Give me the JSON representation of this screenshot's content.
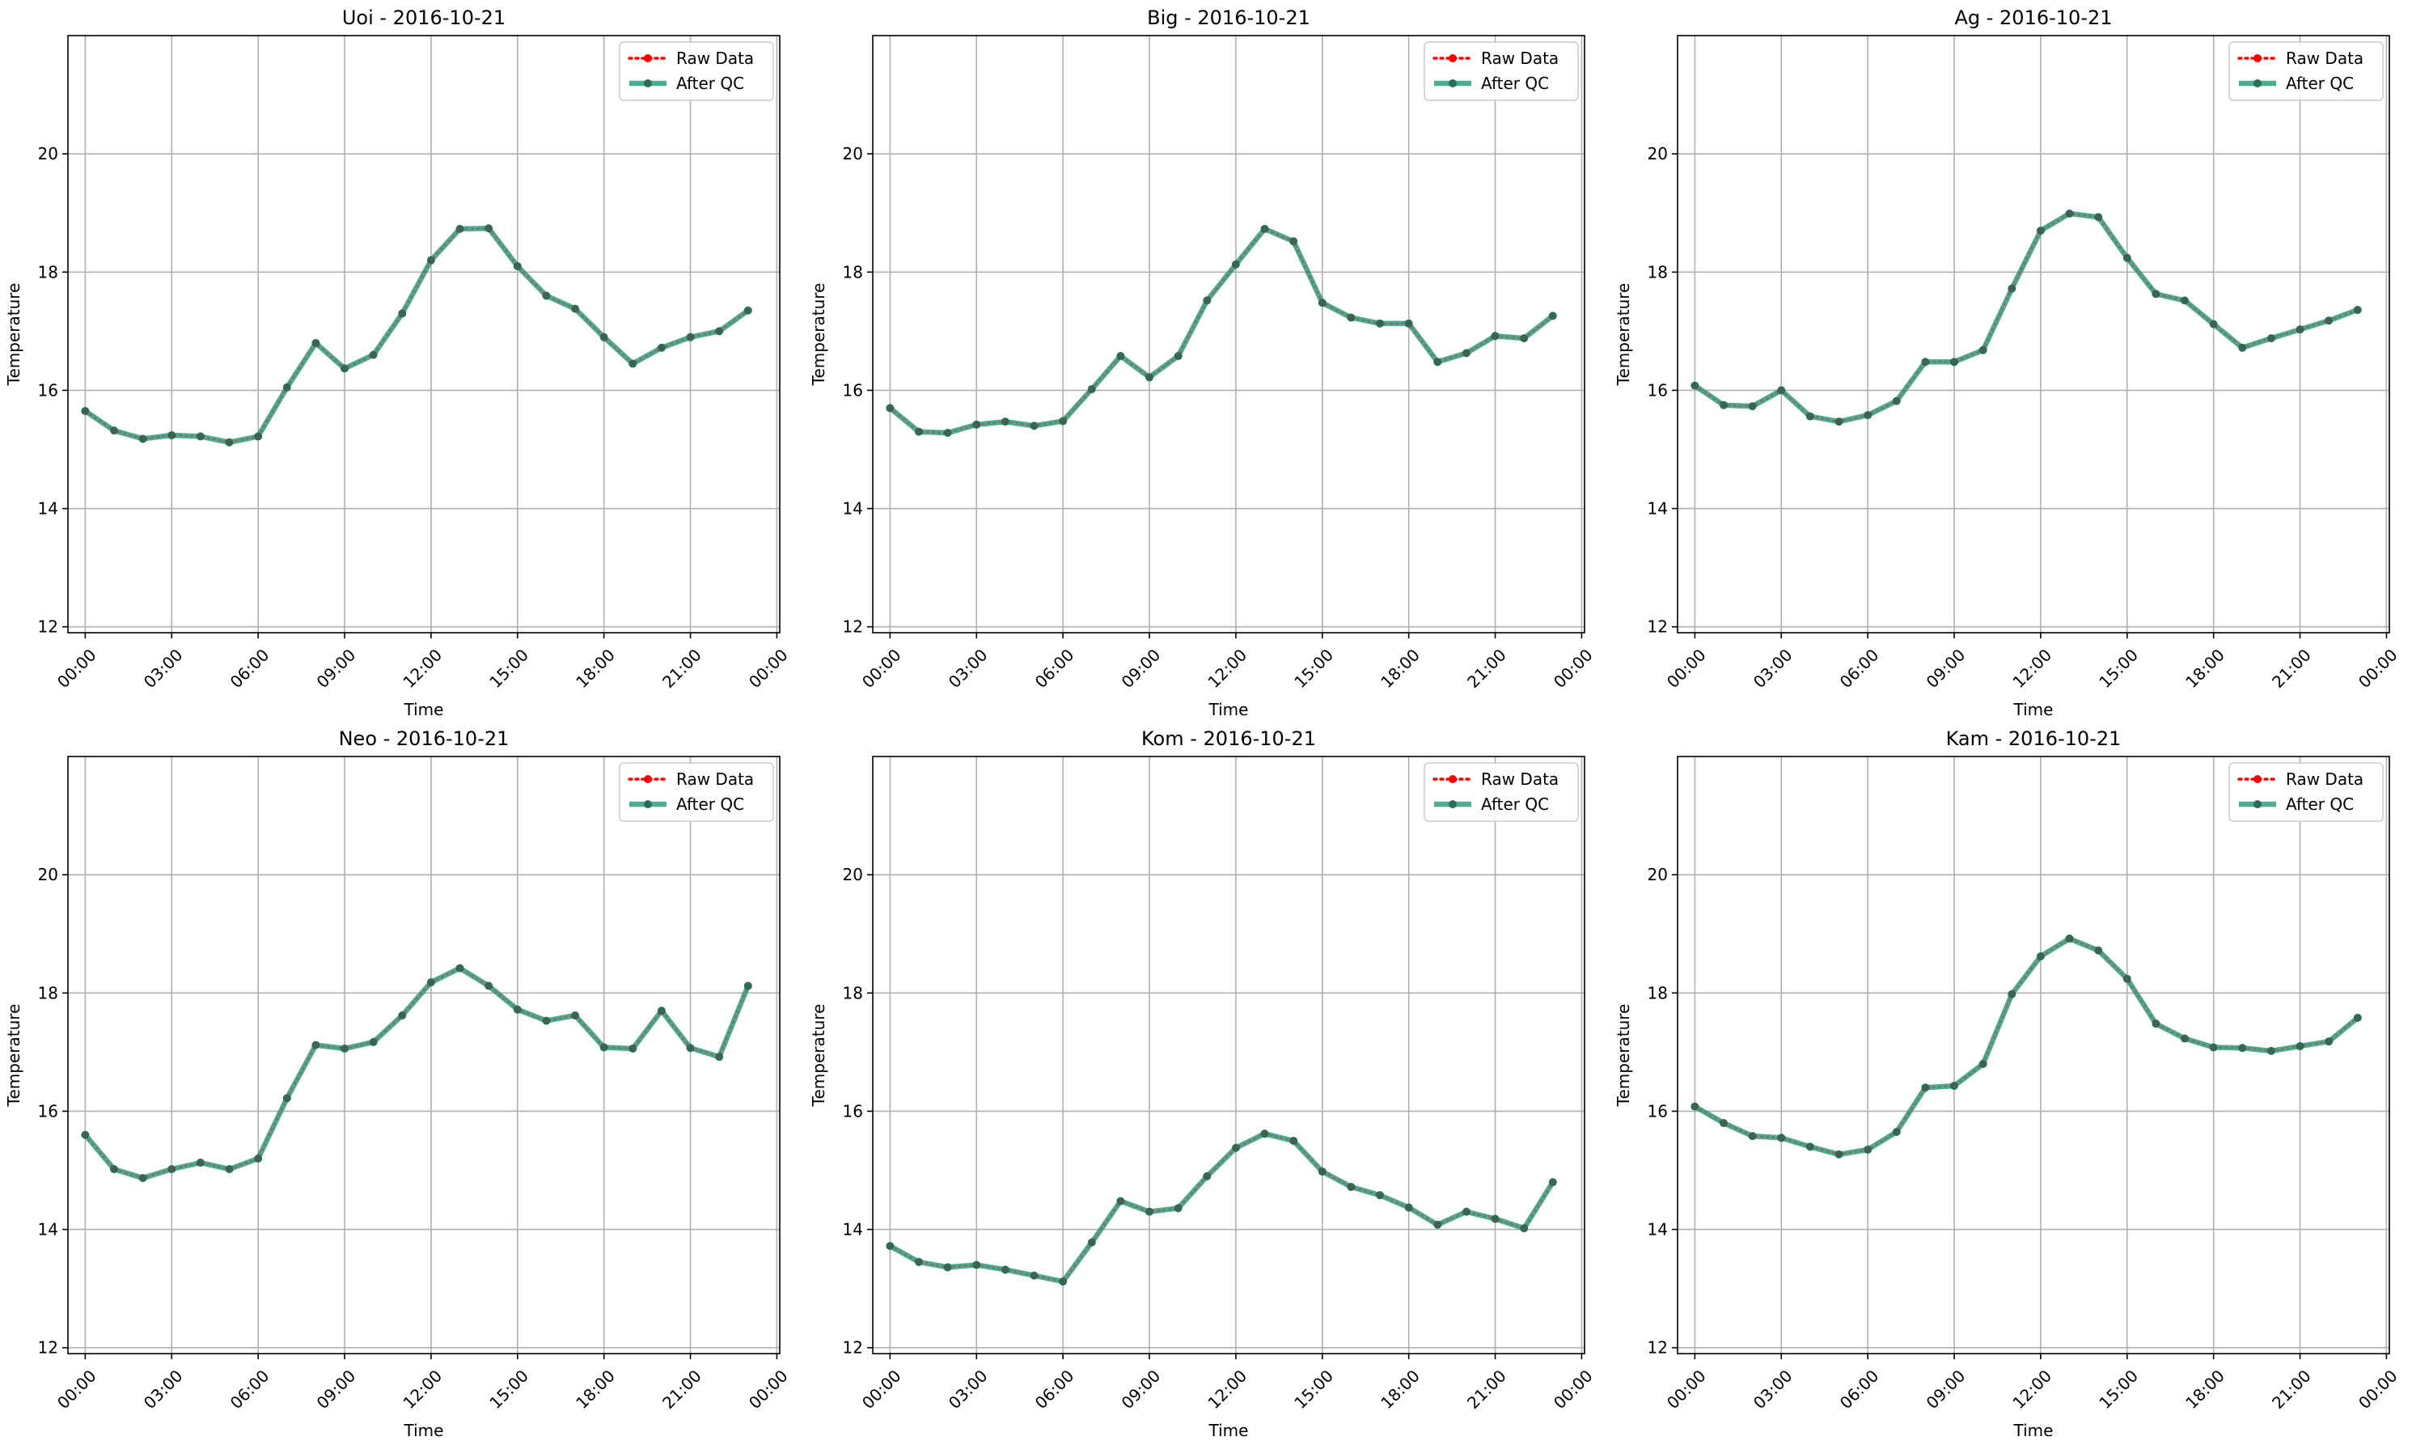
{
  "figure": {
    "ylabel": "Temperature",
    "xlabel": "Time",
    "legend": [
      "Raw Data",
      "After QC"
    ]
  },
  "colors": {
    "raw": "#ff0000",
    "qc": "#2a9d7e",
    "qc_marker": "#2a6e5a",
    "grid": "#b0b0b0",
    "axis": "#000000"
  },
  "chart_data": [
    {
      "type": "line",
      "title": "Uoi - 2016-10-21",
      "xlabel": "Time",
      "ylabel": "Temperature",
      "x_hours": [
        0,
        1,
        2,
        3,
        4,
        5,
        6,
        7,
        8,
        9,
        10,
        11,
        12,
        13,
        14,
        15,
        16,
        17,
        18,
        19,
        20,
        21,
        22,
        23
      ],
      "xticks": [
        "00:00",
        "03:00",
        "06:00",
        "09:00",
        "12:00",
        "15:00",
        "18:00",
        "21:00",
        "00:00"
      ],
      "xlim_hours": [
        -0.6,
        24.1
      ],
      "ylim": [
        11.9,
        22.0
      ],
      "yticks": [
        12,
        14,
        16,
        18,
        20
      ],
      "grid": true,
      "legend_position": "upper right",
      "series": [
        {
          "name": "Raw Data",
          "values": [
            15.65,
            15.32,
            15.18,
            15.24,
            15.22,
            15.12,
            15.22,
            16.05,
            16.8,
            16.37,
            16.6,
            17.3,
            18.2,
            18.73,
            18.74,
            18.1,
            17.6,
            17.38,
            16.9,
            16.45,
            16.72,
            16.9,
            17.0,
            17.35
          ]
        },
        {
          "name": "After QC",
          "values": [
            15.65,
            15.32,
            15.18,
            15.24,
            15.22,
            15.12,
            15.22,
            16.05,
            16.8,
            16.37,
            16.6,
            17.3,
            18.2,
            18.73,
            18.74,
            18.1,
            17.6,
            17.38,
            16.9,
            16.45,
            16.72,
            16.9,
            17.0,
            17.35
          ]
        }
      ]
    },
    {
      "type": "line",
      "title": "Big - 2016-10-21",
      "xlabel": "Time",
      "ylabel": "Temperature",
      "x_hours": [
        0,
        1,
        2,
        3,
        4,
        5,
        6,
        7,
        8,
        9,
        10,
        11,
        12,
        13,
        14,
        15,
        16,
        17,
        18,
        19,
        20,
        21,
        22,
        23
      ],
      "xticks": [
        "00:00",
        "03:00",
        "06:00",
        "09:00",
        "12:00",
        "15:00",
        "18:00",
        "21:00",
        "00:00"
      ],
      "xlim_hours": [
        -0.6,
        24.1
      ],
      "ylim": [
        11.9,
        22.0
      ],
      "yticks": [
        12,
        14,
        16,
        18,
        20
      ],
      "grid": true,
      "legend_position": "upper right",
      "series": [
        {
          "name": "Raw Data",
          "values": [
            15.7,
            15.3,
            15.28,
            15.42,
            15.47,
            15.4,
            15.48,
            16.02,
            16.58,
            16.22,
            16.58,
            17.52,
            18.13,
            18.73,
            18.52,
            17.48,
            17.23,
            17.13,
            17.13,
            16.48,
            16.63,
            16.92,
            16.88,
            17.26
          ]
        },
        {
          "name": "After QC",
          "values": [
            15.7,
            15.3,
            15.28,
            15.42,
            15.47,
            15.4,
            15.48,
            16.02,
            16.58,
            16.22,
            16.58,
            17.52,
            18.13,
            18.73,
            18.52,
            17.48,
            17.23,
            17.13,
            17.13,
            16.48,
            16.63,
            16.92,
            16.88,
            17.26
          ]
        }
      ]
    },
    {
      "type": "line",
      "title": "Ag - 2016-10-21",
      "xlabel": "Time",
      "ylabel": "Temperature",
      "x_hours": [
        0,
        1,
        2,
        3,
        4,
        5,
        6,
        7,
        8,
        9,
        10,
        11,
        12,
        13,
        14,
        15,
        16,
        17,
        18,
        19,
        20,
        21,
        22,
        23
      ],
      "xticks": [
        "00:00",
        "03:00",
        "06:00",
        "09:00",
        "12:00",
        "15:00",
        "18:00",
        "21:00",
        "00:00"
      ],
      "xlim_hours": [
        -0.6,
        24.1
      ],
      "ylim": [
        11.9,
        22.0
      ],
      "yticks": [
        12,
        14,
        16,
        18,
        20
      ],
      "grid": true,
      "legend_position": "upper right",
      "series": [
        {
          "name": "Raw Data",
          "values": [
            16.08,
            15.75,
            15.73,
            16.0,
            15.56,
            15.47,
            15.58,
            15.82,
            16.48,
            16.48,
            16.68,
            17.72,
            18.7,
            18.99,
            18.93,
            18.24,
            17.63,
            17.52,
            17.12,
            16.72,
            16.88,
            17.03,
            17.18,
            17.36
          ]
        },
        {
          "name": "After QC",
          "values": [
            16.08,
            15.75,
            15.73,
            16.0,
            15.56,
            15.47,
            15.58,
            15.82,
            16.48,
            16.48,
            16.68,
            17.72,
            18.7,
            18.99,
            18.93,
            18.24,
            17.63,
            17.52,
            17.12,
            16.72,
            16.88,
            17.03,
            17.18,
            17.36
          ]
        }
      ]
    },
    {
      "type": "line",
      "title": "Neo - 2016-10-21",
      "xlabel": "Time",
      "ylabel": "Temperature",
      "x_hours": [
        0,
        1,
        2,
        3,
        4,
        5,
        6,
        7,
        8,
        9,
        10,
        11,
        12,
        13,
        14,
        15,
        16,
        17,
        18,
        19,
        20,
        21,
        22,
        23
      ],
      "xticks": [
        "00:00",
        "03:00",
        "06:00",
        "09:00",
        "12:00",
        "15:00",
        "18:00",
        "21:00",
        "00:00"
      ],
      "xlim_hours": [
        -0.6,
        24.1
      ],
      "ylim": [
        11.9,
        22.0
      ],
      "yticks": [
        12,
        14,
        16,
        18,
        20
      ],
      "grid": true,
      "legend_position": "upper right",
      "series": [
        {
          "name": "Raw Data",
          "values": [
            15.6,
            15.02,
            14.87,
            15.02,
            15.13,
            15.02,
            15.2,
            16.22,
            17.12,
            17.06,
            17.17,
            17.62,
            18.18,
            18.42,
            18.12,
            17.72,
            17.53,
            17.62,
            17.08,
            17.06,
            17.7,
            17.07,
            16.92,
            18.12
          ]
        },
        {
          "name": "After QC",
          "values": [
            15.6,
            15.02,
            14.87,
            15.02,
            15.13,
            15.02,
            15.2,
            16.22,
            17.12,
            17.06,
            17.17,
            17.62,
            18.18,
            18.42,
            18.12,
            17.72,
            17.53,
            17.62,
            17.08,
            17.06,
            17.7,
            17.07,
            16.92,
            18.12
          ]
        }
      ]
    },
    {
      "type": "line",
      "title": "Kom - 2016-10-21",
      "xlabel": "Time",
      "ylabel": "Temperature",
      "x_hours": [
        0,
        1,
        2,
        3,
        4,
        5,
        6,
        7,
        8,
        9,
        10,
        11,
        12,
        13,
        14,
        15,
        16,
        17,
        18,
        19,
        20,
        21,
        22,
        23
      ],
      "xticks": [
        "00:00",
        "03:00",
        "06:00",
        "09:00",
        "12:00",
        "15:00",
        "18:00",
        "21:00",
        "00:00"
      ],
      "xlim_hours": [
        -0.6,
        24.1
      ],
      "ylim": [
        11.9,
        22.0
      ],
      "yticks": [
        12,
        14,
        16,
        18,
        20
      ],
      "grid": true,
      "legend_position": "upper right",
      "series": [
        {
          "name": "Raw Data",
          "values": [
            13.72,
            13.45,
            13.36,
            13.4,
            13.32,
            13.22,
            13.12,
            13.78,
            14.48,
            14.3,
            14.36,
            14.9,
            15.38,
            15.62,
            15.5,
            14.98,
            14.72,
            14.58,
            14.37,
            14.08,
            14.3,
            14.18,
            14.02,
            14.8
          ]
        },
        {
          "name": "After QC",
          "values": [
            13.72,
            13.45,
            13.36,
            13.4,
            13.32,
            13.22,
            13.12,
            13.78,
            14.48,
            14.3,
            14.36,
            14.9,
            15.38,
            15.62,
            15.5,
            14.98,
            14.72,
            14.58,
            14.37,
            14.08,
            14.3,
            14.18,
            14.02,
            14.8
          ]
        }
      ]
    },
    {
      "type": "line",
      "title": "Kam - 2016-10-21",
      "xlabel": "Time",
      "ylabel": "Temperature",
      "x_hours": [
        0,
        1,
        2,
        3,
        4,
        5,
        6,
        7,
        8,
        9,
        10,
        11,
        12,
        13,
        14,
        15,
        16,
        17,
        18,
        19,
        20,
        21,
        22,
        23
      ],
      "xticks": [
        "00:00",
        "03:00",
        "06:00",
        "09:00",
        "12:00",
        "15:00",
        "18:00",
        "21:00",
        "00:00"
      ],
      "xlim_hours": [
        -0.6,
        24.1
      ],
      "ylim": [
        11.9,
        22.0
      ],
      "yticks": [
        12,
        14,
        16,
        18,
        20
      ],
      "grid": true,
      "legend_position": "upper right",
      "series": [
        {
          "name": "Raw Data",
          "values": [
            16.08,
            15.8,
            15.58,
            15.55,
            15.4,
            15.27,
            15.35,
            15.65,
            16.4,
            16.43,
            16.8,
            17.98,
            18.62,
            18.92,
            18.72,
            18.24,
            17.48,
            17.23,
            17.08,
            17.07,
            17.02,
            17.1,
            17.18,
            17.58
          ]
        },
        {
          "name": "After QC",
          "values": [
            16.08,
            15.8,
            15.58,
            15.55,
            15.4,
            15.27,
            15.35,
            15.65,
            16.4,
            16.43,
            16.8,
            17.98,
            18.62,
            18.92,
            18.72,
            18.24,
            17.48,
            17.23,
            17.08,
            17.07,
            17.02,
            17.1,
            17.18,
            17.58
          ]
        }
      ]
    }
  ]
}
